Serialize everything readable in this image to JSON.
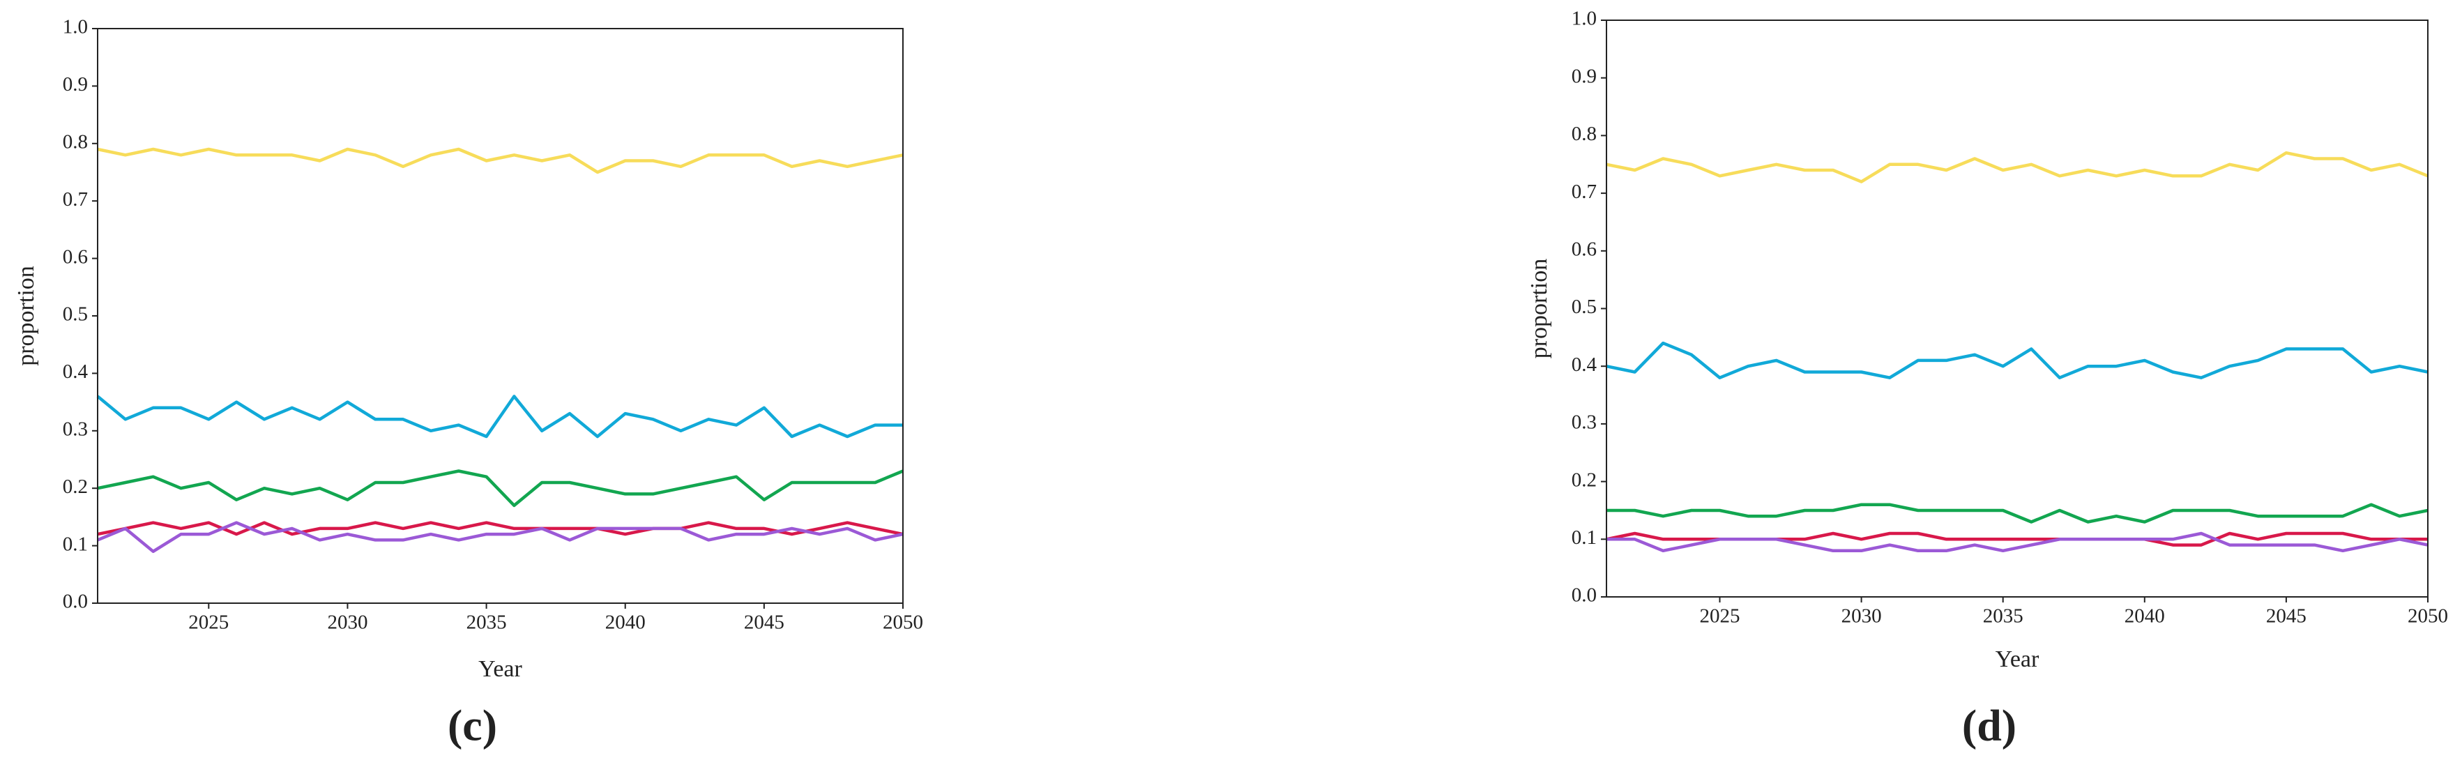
{
  "chart_data": [
    {
      "type": "line",
      "x_label": "Year",
      "y_label": "proportion",
      "caption": "(c)",
      "x": [
        2021,
        2022,
        2023,
        2024,
        2025,
        2026,
        2027,
        2028,
        2029,
        2030,
        2031,
        2032,
        2033,
        2034,
        2035,
        2036,
        2037,
        2038,
        2039,
        2040,
        2041,
        2042,
        2043,
        2044,
        2045,
        2046,
        2047,
        2048,
        2049,
        2050
      ],
      "xlim": [
        2021,
        2050
      ],
      "xticks": [
        2025,
        2030,
        2035,
        2040,
        2045,
        2050
      ],
      "ylim": [
        0,
        1
      ],
      "yticks": [
        {
          "value": 0,
          "label": "0.0"
        },
        0.1,
        0.2,
        0.3,
        0.4,
        0.5,
        0.6,
        0.7,
        0.8,
        0.9,
        {
          "value": 1,
          "label": "1.0"
        }
      ],
      "series": [
        {
          "color": "#f7dc5a",
          "values": [
            0.79,
            0.78,
            0.79,
            0.78,
            0.79,
            0.78,
            0.78,
            0.78,
            0.77,
            0.79,
            0.78,
            0.76,
            0.78,
            0.79,
            0.77,
            0.78,
            0.77,
            0.78,
            0.75,
            0.77,
            0.77,
            0.76,
            0.78,
            0.78,
            0.78,
            0.76,
            0.77,
            0.76,
            0.77,
            0.78
          ]
        },
        {
          "color": "#11a9d8",
          "values": [
            0.36,
            0.32,
            0.34,
            0.34,
            0.32,
            0.35,
            0.32,
            0.34,
            0.32,
            0.35,
            0.32,
            0.32,
            0.3,
            0.31,
            0.29,
            0.36,
            0.3,
            0.33,
            0.29,
            0.33,
            0.32,
            0.3,
            0.32,
            0.31,
            0.34,
            0.29,
            0.31,
            0.29,
            0.31,
            0.31
          ]
        },
        {
          "color": "#12a650",
          "values": [
            0.2,
            0.21,
            0.22,
            0.2,
            0.21,
            0.18,
            0.2,
            0.19,
            0.2,
            0.18,
            0.21,
            0.21,
            0.22,
            0.23,
            0.22,
            0.17,
            0.21,
            0.21,
            0.2,
            0.19,
            0.19,
            0.2,
            0.21,
            0.22,
            0.18,
            0.21,
            0.21,
            0.21,
            0.21,
            0.23
          ]
        },
        {
          "color": "#d8184a",
          "values": [
            0.12,
            0.13,
            0.14,
            0.13,
            0.14,
            0.12,
            0.14,
            0.12,
            0.13,
            0.13,
            0.14,
            0.13,
            0.14,
            0.13,
            0.14,
            0.13,
            0.13,
            0.13,
            0.13,
            0.12,
            0.13,
            0.13,
            0.14,
            0.13,
            0.13,
            0.12,
            0.13,
            0.14,
            0.13,
            0.12
          ]
        },
        {
          "color": "#9b59d6",
          "values": [
            0.11,
            0.13,
            0.09,
            0.12,
            0.12,
            0.14,
            0.12,
            0.13,
            0.11,
            0.12,
            0.11,
            0.11,
            0.12,
            0.11,
            0.12,
            0.12,
            0.13,
            0.11,
            0.13,
            0.13,
            0.13,
            0.13,
            0.11,
            0.12,
            0.12,
            0.13,
            0.12,
            0.13,
            0.11,
            0.12
          ]
        }
      ]
    },
    {
      "type": "line",
      "x_label": "Year",
      "y_label": "proportion",
      "caption": "(d)",
      "x": [
        2021,
        2022,
        2023,
        2024,
        2025,
        2026,
        2027,
        2028,
        2029,
        2030,
        2031,
        2032,
        2033,
        2034,
        2035,
        2036,
        2037,
        2038,
        2039,
        2040,
        2041,
        2042,
        2043,
        2044,
        2045,
        2046,
        2047,
        2048,
        2049,
        2050
      ],
      "xlim": [
        2021,
        2050
      ],
      "xticks": [
        2025,
        2030,
        2035,
        2040,
        2045,
        2050
      ],
      "ylim": [
        0,
        1
      ],
      "yticks": [
        {
          "value": 0,
          "label": "0.0"
        },
        0.1,
        0.2,
        0.3,
        0.4,
        0.5,
        0.6,
        0.7,
        0.8,
        0.9,
        {
          "value": 1,
          "label": "1.0"
        }
      ],
      "series": [
        {
          "color": "#f7dc5a",
          "values": [
            0.75,
            0.74,
            0.76,
            0.75,
            0.73,
            0.74,
            0.75,
            0.74,
            0.74,
            0.72,
            0.75,
            0.75,
            0.74,
            0.76,
            0.74,
            0.75,
            0.73,
            0.74,
            0.73,
            0.74,
            0.73,
            0.73,
            0.75,
            0.74,
            0.77,
            0.76,
            0.76,
            0.74,
            0.75,
            0.73
          ]
        },
        {
          "color": "#11a9d8",
          "values": [
            0.4,
            0.39,
            0.44,
            0.42,
            0.38,
            0.4,
            0.41,
            0.39,
            0.39,
            0.39,
            0.38,
            0.41,
            0.41,
            0.42,
            0.4,
            0.43,
            0.38,
            0.4,
            0.4,
            0.41,
            0.39,
            0.38,
            0.4,
            0.41,
            0.43,
            0.43,
            0.43,
            0.39,
            0.4,
            0.39
          ]
        },
        {
          "color": "#12a650",
          "values": [
            0.15,
            0.15,
            0.14,
            0.15,
            0.15,
            0.14,
            0.14,
            0.15,
            0.15,
            0.16,
            0.16,
            0.15,
            0.15,
            0.15,
            0.15,
            0.13,
            0.15,
            0.13,
            0.14,
            0.13,
            0.15,
            0.15,
            0.15,
            0.14,
            0.14,
            0.14,
            0.14,
            0.16,
            0.14,
            0.15
          ]
        },
        {
          "color": "#d8184a",
          "values": [
            0.1,
            0.11,
            0.1,
            0.1,
            0.1,
            0.1,
            0.1,
            0.1,
            0.11,
            0.1,
            0.11,
            0.11,
            0.1,
            0.1,
            0.1,
            0.1,
            0.1,
            0.1,
            0.1,
            0.1,
            0.09,
            0.09,
            0.11,
            0.1,
            0.11,
            0.11,
            0.11,
            0.1,
            0.1,
            0.1
          ]
        },
        {
          "color": "#9b59d6",
          "values": [
            0.1,
            0.1,
            0.08,
            0.09,
            0.1,
            0.1,
            0.1,
            0.09,
            0.08,
            0.08,
            0.09,
            0.08,
            0.08,
            0.09,
            0.08,
            0.09,
            0.1,
            0.1,
            0.1,
            0.1,
            0.1,
            0.11,
            0.09,
            0.09,
            0.09,
            0.09,
            0.08,
            0.09,
            0.1,
            0.09
          ]
        }
      ]
    }
  ]
}
